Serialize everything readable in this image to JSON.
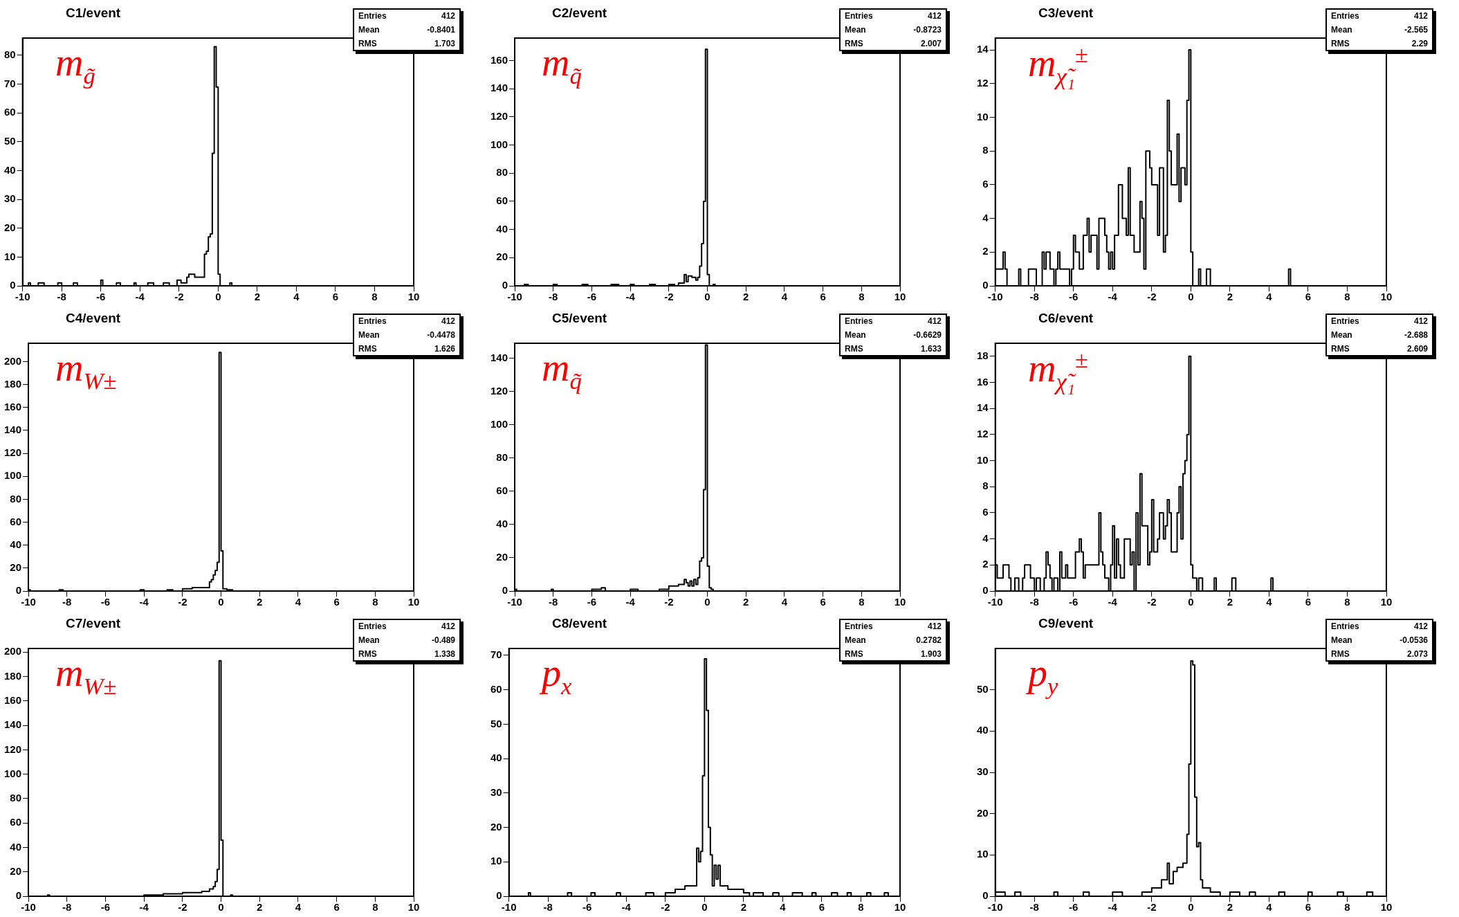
{
  "chart_data": [
    {
      "type": "histogram",
      "title": "C1/event",
      "color": "#000000",
      "xlim": [
        -10,
        10
      ],
      "ylim": [
        0,
        86
      ],
      "xticks": [
        -10,
        -8,
        -6,
        -4,
        -2,
        0,
        2,
        4,
        6,
        8,
        10
      ],
      "yticks": [
        0,
        10,
        20,
        30,
        40,
        50,
        60,
        70,
        80
      ],
      "annotations": [
        "m$_{g̃}$",
        "Entries",
        "412",
        "Mean",
        "-0.8401",
        "RMS",
        "1.703"
      ],
      "bins": [
        -10,
        -9.7,
        -9.6,
        -9.2,
        -8.9,
        -8.2,
        -8.0,
        -7.4,
        -7.2,
        -6.0,
        -5.9,
        -5.2,
        -5.0,
        -4.3,
        -4.2,
        -3.6,
        -3.3,
        -2.8,
        -2.5,
        -2.1,
        -1.9,
        -1.6,
        -1.5,
        -1.2,
        -1.0,
        -0.7,
        -0.6,
        -0.5,
        -0.4,
        -0.3,
        -0.2,
        -0.1,
        0,
        0.1,
        0.6,
        0.7,
        10
      ],
      "values": [
        0,
        1,
        0,
        1,
        0,
        1,
        0,
        1,
        0,
        2,
        0,
        1,
        0,
        1,
        0,
        1,
        0,
        1,
        0,
        2,
        1,
        3,
        4,
        3,
        3,
        11,
        12,
        17,
        18,
        46,
        83,
        69,
        4,
        0,
        1,
        0
      ]
    },
    {
      "type": "histogram",
      "title": "C2/event",
      "color": "#000000",
      "xlim": [
        -10,
        10
      ],
      "ylim": [
        0,
        176
      ],
      "xticks": [
        -10,
        -8,
        -6,
        -4,
        -2,
        0,
        2,
        4,
        6,
        8,
        10
      ],
      "yticks": [
        0,
        20,
        40,
        60,
        80,
        100,
        120,
        140,
        160
      ],
      "annotations": [
        "m$_{q̃}$",
        "Entries",
        "412",
        "Mean",
        "-0.8723",
        "RMS",
        "2.007"
      ],
      "bins": [
        -10,
        -9.5,
        -9.3,
        -8.0,
        -7.8,
        -6.5,
        -6.2,
        -5.0,
        -4.6,
        -4.0,
        -3.8,
        -3.0,
        -2.7,
        -2.0,
        -1.7,
        -1.5,
        -1.2,
        -1.1,
        -1.0,
        -0.8,
        -0.6,
        -0.5,
        -0.4,
        -0.3,
        -0.2,
        -0.1,
        0,
        0.1,
        0.3,
        0.4,
        10
      ],
      "values": [
        0,
        1,
        0,
        1,
        0,
        1,
        0,
        1,
        0,
        1,
        0,
        1,
        0,
        1,
        0,
        2,
        8,
        3,
        7,
        6,
        4,
        6,
        14,
        30,
        60,
        168,
        8,
        0,
        1,
        0
      ]
    },
    {
      "type": "histogram",
      "title": "C3/event",
      "color": "#000000",
      "xlim": [
        -10,
        10
      ],
      "ylim": [
        0,
        14.7
      ],
      "xticks": [
        -10,
        -8,
        -6,
        -4,
        -2,
        0,
        2,
        4,
        6,
        8,
        10
      ],
      "yticks": [
        0,
        2,
        4,
        6,
        8,
        10,
        12,
        14
      ],
      "annotations": [
        "m$_{χ̃₁}$$^{±}$",
        "Entries",
        "412",
        "Mean",
        "-2.565",
        "RMS",
        "2.29"
      ],
      "bins": [
        -10,
        -9.9,
        -9.8,
        -9.7,
        -9.6,
        -9.5,
        -9.4,
        -9.3,
        -9.2,
        -9.1,
        -9.0,
        -8.9,
        -8.8,
        -8.7,
        -8.6,
        -8.5,
        -8.4,
        -8.3,
        -8.2,
        -8.1,
        -8.0,
        -7.9,
        -7.8,
        -7.7,
        -7.6,
        -7.5,
        -7.4,
        -7.3,
        -7.2,
        -7.1,
        -7.0,
        -6.9,
        -6.8,
        -6.7,
        -6.6,
        -6.5,
        -6.4,
        -6.3,
        -6.2,
        -6.1,
        -6.0,
        -5.9,
        -5.8,
        -5.7,
        -5.6,
        -5.5,
        -5.4,
        -5.3,
        -5.2,
        -5.1,
        -5.0,
        -4.9,
        -4.8,
        -4.7,
        -4.6,
        -4.5,
        -4.4,
        -4.3,
        -4.2,
        -4.1,
        -4.0,
        -3.9,
        -3.8,
        -3.7,
        -3.6,
        -3.5,
        -3.4,
        -3.3,
        -3.2,
        -3.1,
        -3.0,
        -2.9,
        -2.8,
        -2.7,
        -2.6,
        -2.5,
        -2.4,
        -2.3,
        -2.2,
        -2.1,
        -2.0,
        -1.9,
        -1.8,
        -1.7,
        -1.6,
        -1.5,
        -1.4,
        -1.3,
        -1.2,
        -1.1,
        -1.0,
        -0.9,
        -0.8,
        -0.7,
        -0.6,
        -0.5,
        -0.4,
        -0.3,
        -0.2,
        -0.1,
        0,
        0.1,
        0.2,
        0.3,
        0.4,
        0.5,
        0.6,
        0.7,
        0.8,
        0.9,
        1.0,
        5.0,
        5.1,
        10
      ],
      "values": [
        1,
        1,
        1,
        1,
        2,
        1,
        0,
        0,
        0,
        0,
        0,
        0,
        1,
        0,
        0,
        0,
        0,
        1,
        1,
        1,
        1,
        0,
        0,
        0,
        2,
        1,
        2,
        2,
        1,
        1,
        0,
        1,
        2,
        1,
        1,
        1,
        1,
        1,
        0,
        1,
        3,
        2,
        2,
        1,
        1,
        3,
        3,
        4,
        2,
        3,
        3,
        3,
        1,
        4,
        4,
        4,
        3,
        2,
        1,
        2,
        1,
        3,
        3,
        6,
        6,
        4,
        4,
        3,
        7,
        3,
        3,
        2,
        2,
        2,
        5,
        4,
        1,
        8,
        8,
        7,
        6,
        6,
        6,
        3,
        7,
        7,
        2,
        3,
        11,
        8,
        6,
        6,
        6,
        9,
        5,
        7,
        7,
        6,
        11,
        14,
        2,
        0,
        0,
        0,
        1,
        0,
        0,
        0,
        1,
        1,
        0,
        1,
        0
      ]
    },
    {
      "type": "histogram",
      "title": "C4/event",
      "color": "#000000",
      "xlim": [
        -10,
        10
      ],
      "ylim": [
        0,
        216
      ],
      "xticks": [
        -10,
        -8,
        -6,
        -4,
        -2,
        0,
        2,
        4,
        6,
        8,
        10
      ],
      "yticks": [
        0,
        20,
        40,
        60,
        80,
        100,
        120,
        140,
        160,
        180,
        200
      ],
      "annotations": [
        "m$_{W±}$",
        "Entries",
        "412",
        "Mean",
        "-0.4478",
        "RMS",
        "1.626"
      ],
      "bins": [
        -10,
        -9.9,
        -8.4,
        -8.2,
        -4.2,
        -4.0,
        -2.8,
        -2.5,
        -2.0,
        -1.5,
        -0.6,
        -0.5,
        -0.4,
        -0.3,
        -0.2,
        -0.1,
        0,
        0.1,
        0.3,
        0.6,
        10
      ],
      "values": [
        1,
        0,
        1,
        0,
        1,
        0,
        1,
        0,
        2,
        3,
        8,
        10,
        14,
        18,
        25,
        208,
        35,
        2,
        1,
        0
      ]
    },
    {
      "type": "histogram",
      "title": "C5/event",
      "color": "#000000",
      "xlim": [
        -10,
        10
      ],
      "ylim": [
        0,
        149
      ],
      "xticks": [
        -10,
        -8,
        -6,
        -4,
        -2,
        0,
        2,
        4,
        6,
        8,
        10
      ],
      "yticks": [
        0,
        20,
        40,
        60,
        80,
        100,
        120,
        140
      ],
      "annotations": [
        "m$_{q̃}$",
        "Entries",
        "412",
        "Mean",
        "-0.6629",
        "RMS",
        "1.633"
      ],
      "bins": [
        -10,
        -9.9,
        -8.1,
        -8.0,
        -6.0,
        -5.5,
        -5.3,
        -4.0,
        -3.6,
        -2.5,
        -2.0,
        -1.5,
        -1.2,
        -1.1,
        -1.0,
        -0.9,
        -0.8,
        -0.7,
        -0.6,
        -0.5,
        -0.4,
        -0.3,
        -0.2,
        -0.1,
        0,
        0.1,
        0.2,
        0.3,
        10
      ],
      "values": [
        1,
        0,
        1,
        0,
        1,
        2,
        0,
        1,
        0,
        1,
        3,
        4,
        7,
        5,
        3,
        6,
        3,
        7,
        4,
        8,
        18,
        20,
        61,
        148,
        15,
        2,
        1,
        0
      ]
    },
    {
      "type": "histogram",
      "title": "C6/event",
      "color": "#000000",
      "xlim": [
        -10,
        10
      ],
      "ylim": [
        0,
        19
      ],
      "xticks": [
        -10,
        -8,
        -6,
        -4,
        -2,
        0,
        2,
        4,
        6,
        8,
        10
      ],
      "yticks": [
        0,
        2,
        4,
        6,
        8,
        10,
        12,
        14,
        16,
        18
      ],
      "annotations": [
        "m$_{χ̃₁}$$^{±}$",
        "Entries",
        "412",
        "Mean",
        "-2.688",
        "RMS",
        "2.609"
      ],
      "bins": [
        -10,
        -9.9,
        -9.8,
        -9.7,
        -9.6,
        -9.5,
        -9.4,
        -9.3,
        -9.2,
        -9.1,
        -9.0,
        -8.9,
        -8.8,
        -8.7,
        -8.6,
        -8.5,
        -8.4,
        -8.3,
        -8.2,
        -8.1,
        -8.0,
        -7.9,
        -7.8,
        -7.7,
        -7.6,
        -7.5,
        -7.4,
        -7.3,
        -7.2,
        -7.1,
        -7.0,
        -6.9,
        -6.8,
        -6.7,
        -6.6,
        -6.5,
        -6.4,
        -6.3,
        -6.2,
        -6.1,
        -6.0,
        -5.9,
        -5.8,
        -5.7,
        -5.6,
        -5.5,
        -5.4,
        -5.3,
        -5.2,
        -5.1,
        -5.0,
        -4.9,
        -4.8,
        -4.7,
        -4.6,
        -4.5,
        -4.4,
        -4.3,
        -4.2,
        -4.1,
        -4.0,
        -3.9,
        -3.8,
        -3.7,
        -3.6,
        -3.5,
        -3.4,
        -3.3,
        -3.2,
        -3.1,
        -3.0,
        -2.9,
        -2.8,
        -2.7,
        -2.6,
        -2.5,
        -2.4,
        -2.3,
        -2.2,
        -2.1,
        -2.0,
        -1.9,
        -1.8,
        -1.7,
        -1.6,
        -1.5,
        -1.4,
        -1.3,
        -1.2,
        -1.1,
        -1.0,
        -0.9,
        -0.8,
        -0.7,
        -0.6,
        -0.5,
        -0.4,
        -0.3,
        -0.2,
        -0.1,
        0,
        0.1,
        0.2,
        0.3,
        0.4,
        0.5,
        0.6,
        0.7,
        0.8,
        0.9,
        1.0,
        1.2,
        1.3,
        2.1,
        2.3,
        4.1,
        4.2,
        10
      ],
      "values": [
        2,
        1,
        1,
        1,
        2,
        2,
        2,
        1,
        0,
        0,
        1,
        1,
        0,
        0,
        1,
        2,
        2,
        2,
        1,
        1,
        0,
        1,
        1,
        0,
        0,
        1,
        3,
        2,
        1,
        0,
        1,
        1,
        0,
        3,
        1,
        1,
        2,
        1,
        1,
        1,
        1,
        3,
        3,
        4,
        3,
        1,
        2,
        2,
        2,
        2,
        2,
        2,
        2,
        6,
        3,
        2,
        1,
        1,
        0,
        2,
        5,
        1,
        4,
        2,
        1,
        1,
        4,
        4,
        4,
        2,
        3,
        0,
        6,
        2,
        9,
        5,
        5,
        5,
        2,
        3,
        7,
        3,
        3,
        4,
        6,
        6,
        4,
        5,
        7,
        6,
        3,
        3,
        3,
        6,
        8,
        4,
        9,
        10,
        12,
        18,
        2,
        1,
        1,
        0,
        1,
        1,
        0,
        0,
        0,
        0,
        0,
        1,
        0,
        1,
        0,
        1,
        0
      ]
    },
    {
      "type": "histogram",
      "title": "C7/event",
      "color": "#000000",
      "xlim": [
        -10,
        10
      ],
      "ylim": [
        0,
        203
      ],
      "xticks": [
        -10,
        -8,
        -6,
        -4,
        -2,
        0,
        2,
        4,
        6,
        8,
        10
      ],
      "yticks": [
        0,
        20,
        40,
        60,
        80,
        100,
        120,
        140,
        160,
        180,
        200
      ],
      "annotations": [
        "m$_{W±}$",
        "Entries",
        "412",
        "Mean",
        "-0.489",
        "RMS",
        "1.338"
      ],
      "bins": [
        -10,
        -9.0,
        -8.9,
        -4.0,
        -3.0,
        -2.0,
        -1.0,
        -0.6,
        -0.4,
        -0.3,
        -0.2,
        -0.1,
        0,
        0.1,
        0.5,
        0.6,
        10
      ],
      "values": [
        0,
        1,
        0,
        1,
        2,
        3,
        4,
        6,
        8,
        12,
        22,
        193,
        46,
        0,
        1,
        0
      ]
    },
    {
      "type": "histogram",
      "title": "C8/event",
      "color": "#000000",
      "xlim": [
        -10,
        10
      ],
      "ylim": [
        0,
        72
      ],
      "xticks": [
        -10,
        -8,
        -6,
        -4,
        -2,
        0,
        2,
        4,
        6,
        8,
        10
      ],
      "yticks": [
        0,
        10,
        20,
        30,
        40,
        50,
        60,
        70
      ],
      "annotations": [
        "p$_{x}$",
        "Entries",
        "412",
        "Mean",
        "0.2782",
        "RMS",
        "1.903"
      ],
      "bins": [
        -10,
        -9.0,
        -8.9,
        -7.0,
        -6.8,
        -5.8,
        -5.6,
        -4.5,
        -4.3,
        -3.0,
        -2.6,
        -2.0,
        -1.5,
        -1.0,
        -0.5,
        -0.4,
        -0.3,
        -0.2,
        -0.1,
        0,
        0.1,
        0.2,
        0.3,
        0.4,
        0.5,
        0.6,
        0.7,
        0.8,
        0.9,
        1.2,
        2.0,
        2.3,
        2.5,
        3.0,
        3.5,
        3.8,
        4.5,
        5.0,
        5.5,
        5.7,
        6.5,
        6.8,
        7.3,
        7.5,
        8.3,
        8.5,
        9.2,
        9.4,
        10
      ],
      "values": [
        0,
        1,
        0,
        1,
        0,
        1,
        0,
        1,
        0,
        1,
        0,
        1,
        2,
        3,
        3,
        14,
        10,
        13,
        35,
        69,
        54,
        20,
        12,
        3,
        9,
        5,
        9,
        3,
        3,
        2,
        1,
        0,
        1,
        0,
        1,
        0,
        1,
        0,
        1,
        0,
        1,
        0,
        1,
        0,
        1,
        0,
        1,
        0
      ]
    },
    {
      "type": "histogram",
      "title": "C9/event",
      "color": "#000000",
      "xlim": [
        -10,
        10
      ],
      "ylim": [
        0,
        60
      ],
      "xticks": [
        -10,
        -8,
        -6,
        -4,
        -2,
        0,
        2,
        4,
        6,
        8,
        10
      ],
      "yticks": [
        0,
        10,
        20,
        30,
        40,
        50
      ],
      "annotations": [
        "p$_{y}$",
        "Entries",
        "412",
        "Mean",
        "-0.0536",
        "RMS",
        "2.073"
      ],
      "bins": [
        -10,
        -9.5,
        -9.0,
        -8.7,
        -7.0,
        -6.8,
        -5.5,
        -5.2,
        -4.0,
        -3.5,
        -2.5,
        -2.0,
        -1.5,
        -1.2,
        -1.1,
        -0.9,
        -0.7,
        -0.4,
        -0.2,
        -0.1,
        0,
        0.1,
        0.2,
        0.3,
        0.4,
        0.5,
        0.6,
        1.0,
        1.5,
        2.0,
        2.5,
        3.0,
        3.3,
        4.5,
        4.8,
        6.0,
        6.2,
        7.5,
        7.8,
        9.0,
        9.3,
        10
      ],
      "values": [
        1,
        0,
        1,
        0,
        1,
        0,
        1,
        0,
        1,
        0,
        1,
        2,
        4,
        8,
        3,
        6,
        7,
        8,
        15,
        32,
        57,
        56,
        24,
        12,
        13,
        4,
        2,
        1,
        0,
        1,
        0,
        1,
        0,
        1,
        0,
        1,
        0,
        1,
        0,
        1,
        0
      ]
    }
  ]
}
